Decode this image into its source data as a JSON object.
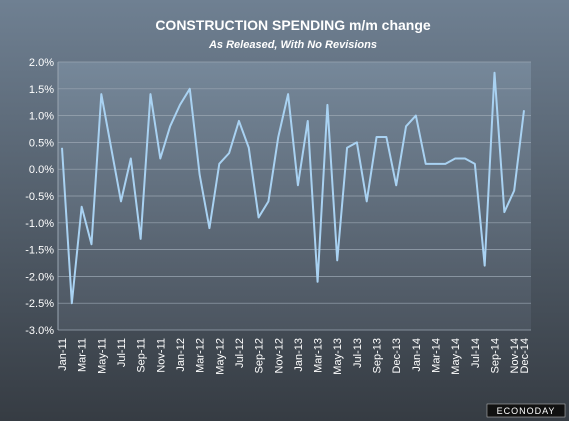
{
  "chart_data": {
    "type": "line",
    "title": "CONSTRUCTION SPENDING m/m change",
    "subtitle": "As Released, With No Revisions",
    "logo": "ECONODAY",
    "categories": [
      "Jan-11",
      null,
      "Mar-11",
      null,
      "May-11",
      null,
      "Jul-11",
      null,
      "Sep-11",
      null,
      "Nov-11",
      null,
      "Jan-12",
      null,
      "Mar-12",
      null,
      "May-12",
      null,
      "Jul-12",
      null,
      "Sep-12",
      null,
      "Nov-12",
      null,
      "Jan-13",
      null,
      "Mar-13",
      null,
      "May-13",
      null,
      "Jul-13",
      null,
      "Sep-13",
      null,
      "Dec-13",
      null,
      "Jan-14",
      null,
      "Mar-14",
      null,
      "May-14",
      null,
      "Jul-14",
      null,
      "Sep-14",
      null,
      "Nov-14",
      "Dec-14"
    ],
    "series": [
      {
        "color": "#a9d2f2",
        "values": [
          0.4,
          -2.5,
          -0.7,
          -1.4,
          1.4,
          0.4,
          -0.6,
          0.2,
          -1.3,
          1.4,
          0.2,
          0.8,
          1.2,
          1.5,
          -0.1,
          -1.1,
          0.1,
          0.3,
          0.9,
          0.4,
          -0.9,
          -0.6,
          0.6,
          1.4,
          -0.3,
          0.9,
          -2.1,
          1.2,
          -1.7,
          0.4,
          0.5,
          -0.6,
          0.6,
          0.6,
          -0.3,
          0.8,
          1.0,
          0.1,
          0.1,
          0.1,
          0.2,
          0.2,
          0.1,
          -1.8,
          1.8,
          -0.8,
          -0.4,
          1.1
        ]
      }
    ],
    "ylim": [
      -3,
      2
    ],
    "yticks": [
      {
        "value": -3,
        "label": "-3.0%"
      },
      {
        "value": -2.5,
        "label": "-2.5%"
      },
      {
        "value": -2,
        "label": "-2.0%"
      },
      {
        "value": -1.5,
        "label": "-1.5%"
      },
      {
        "value": -1,
        "label": "-1.0%"
      },
      {
        "value": -0.5,
        "label": "-0.5%"
      },
      {
        "value": 0,
        "label": "0.0%"
      },
      {
        "value": 0.5,
        "label": "0.5%"
      },
      {
        "value": 1,
        "label": "1.0%"
      },
      {
        "value": 1.5,
        "label": "1.5%"
      },
      {
        "value": 2,
        "label": "2.0%"
      }
    ],
    "grid": true
  }
}
